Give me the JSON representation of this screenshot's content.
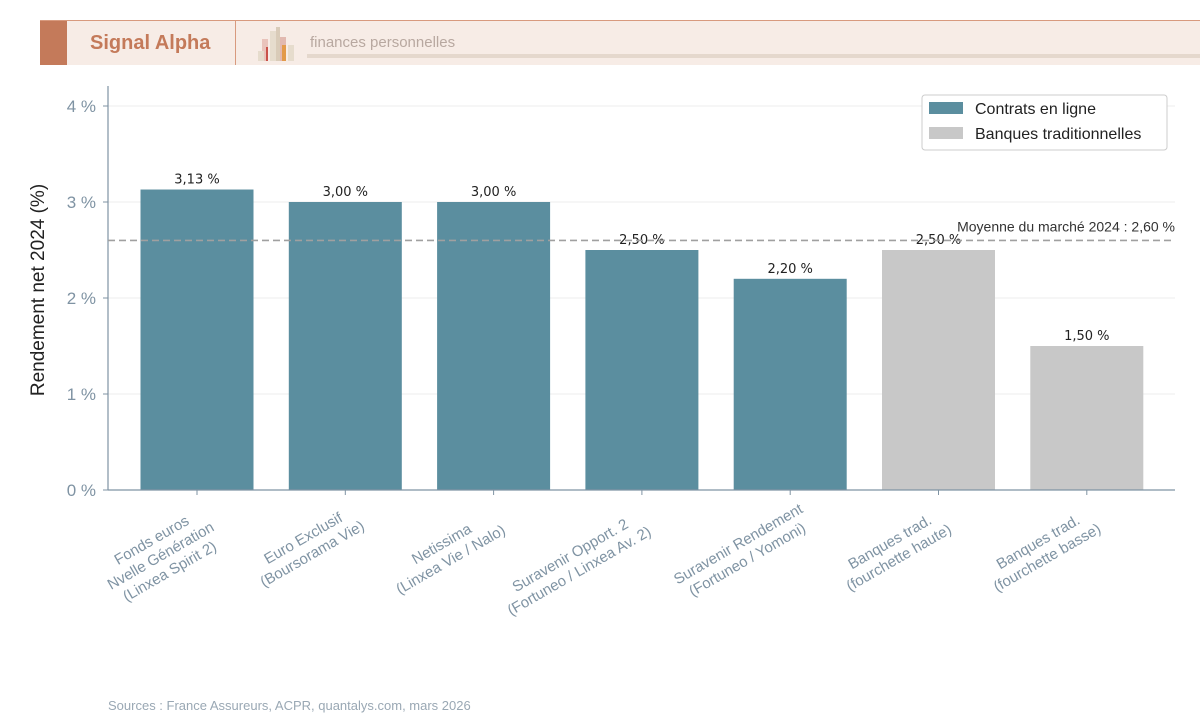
{
  "header": {
    "brand": "Signal Alpha",
    "subtitle": "finances personnelles"
  },
  "source": "Sources : France Assureurs, ACPR, quantalys.com, mars 2026",
  "chart_data": {
    "type": "bar",
    "ylabel": "Rendement net 2024 (%)",
    "ylim": [
      0,
      4.2
    ],
    "yticks": [
      0,
      1,
      2,
      3,
      4
    ],
    "ytick_labels": [
      "0 %",
      "1 %",
      "2 %",
      "3 %",
      "4 %"
    ],
    "grid": "horizontal",
    "categories": [
      [
        "Fonds euros",
        "Nvelle Génération",
        "(Linxea Spirit 2)"
      ],
      [
        "Euro Exclusif",
        "(Boursorama Vie)"
      ],
      [
        "Netissima",
        "(Linxea Vie / Nalo)"
      ],
      [
        "Suravenir Opport. 2",
        "(Fortuneo / Linxea Av. 2)"
      ],
      [
        "Suravenir Rendement",
        "(Fortuneo / Yomoni)"
      ],
      [
        "Banques trad.",
        "(fourchette haute)"
      ],
      [
        "Banques trad.",
        "(fourchette basse)"
      ]
    ],
    "values": [
      3.13,
      3.0,
      3.0,
      2.5,
      2.2,
      2.5,
      1.5
    ],
    "data_labels": [
      "3,13 %",
      "3,00 %",
      "3,00 %",
      "2,50 %",
      "2,20 %",
      "2,50 %",
      "1,50 %"
    ],
    "groups": [
      0,
      0,
      0,
      0,
      0,
      1,
      1
    ],
    "legend_position": "top-right",
    "legend": [
      {
        "name": "Contrats en ligne",
        "color": "#5b8e9f"
      },
      {
        "name": "Banques traditionnelles",
        "color": "#c8c8c8"
      }
    ],
    "reference_line": {
      "value": 2.6,
      "label": "Moyenne du marché 2024 : 2,60 %",
      "color": "#a0a0a0"
    }
  }
}
